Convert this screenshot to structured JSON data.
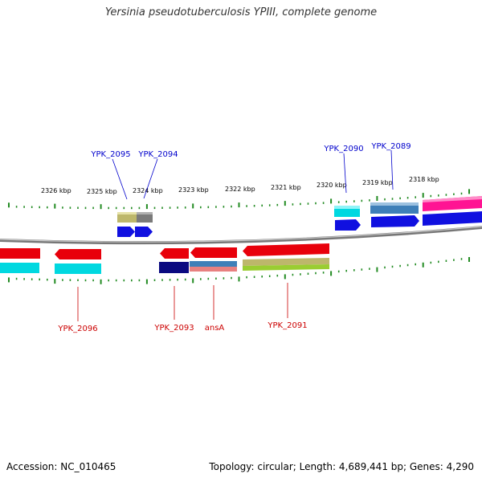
{
  "title": "Yersinia pseudotuberculosis YPIII, complete genome",
  "footer": {
    "accession": "Accession: NC_010465",
    "summary": "Topology: circular; Length: 4,689,441 bp; Genes: 4,290"
  },
  "colors": {
    "backbone": "#8a8a8a",
    "tick": "#228b22",
    "forward_label": "#0000cc",
    "reverse_label": "#cc0000",
    "red": "#e8000b",
    "blue": "#1010e0",
    "navy": "#0a0a80",
    "cyan": "#00d8e0",
    "steelblue": "#3e7fb8",
    "khaki": "#bdb76b",
    "gray": "#7a7a7a",
    "pink": "#ff1493",
    "lightgreen": "#9acd32",
    "salmon": "#e88080"
  },
  "scale_labels": [
    "2326 kbp",
    "2325 kbp",
    "2324 kbp",
    "2323 kbp",
    "2322 kbp",
    "2321 kbp",
    "2320 kbp",
    "2319 kbp",
    "2318 kbp"
  ],
  "gene_labels_forward": [
    "YPK_2095",
    "YPK_2094",
    "YPK_2090",
    "YPK_2089"
  ],
  "gene_labels_reverse": [
    "YPK_2096",
    "YPK_2093",
    "ansA",
    "YPK_2091"
  ]
}
